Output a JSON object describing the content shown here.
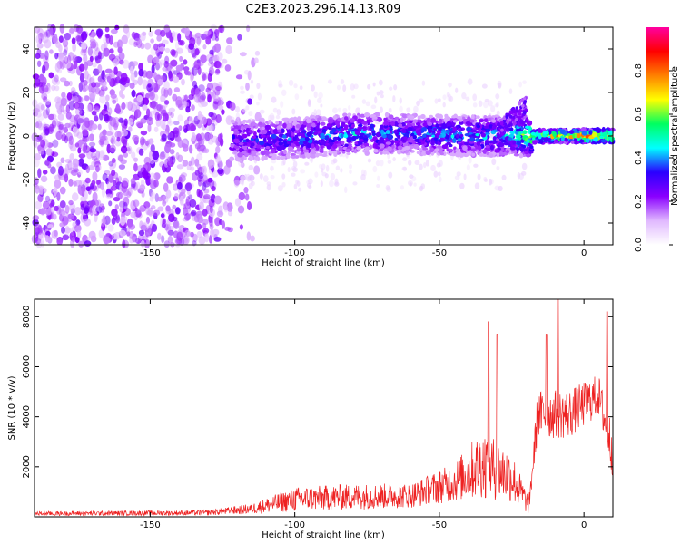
{
  "figure": {
    "title": "C2E3.2023.296.14.13.R09"
  },
  "chart_data": [
    {
      "type": "heatmap",
      "title": "C2E3.2023.296.14.13.R09",
      "xlabel": "Height of straight line (km)",
      "ylabel": "Frequency (Hz)",
      "xlim": [
        -190,
        10
      ],
      "ylim": [
        -50,
        50
      ],
      "xticks": [
        -150,
        -100,
        -50,
        0
      ],
      "yticks": [
        -40,
        -20,
        0,
        20,
        40
      ],
      "colorbar": {
        "label": "Normalized spectral amplitude",
        "range": [
          0,
          1
        ],
        "ticks": [
          0.0,
          0.2,
          0.4,
          0.6,
          0.8
        ],
        "colormap": [
          "#ffffff",
          "#e0b8ff",
          "#8a00ff",
          "#2a00ff",
          "#00ffff",
          "#00ff60",
          "#ffff00",
          "#ff8000",
          "#ff0000",
          "#ff00a0"
        ]
      },
      "description_of_pattern": {
        "noise_region_x": [
          -190,
          -120
        ],
        "signal_track": [
          {
            "x": -120,
            "freq": -2,
            "amp": 0.35
          },
          {
            "x": -100,
            "freq": -1,
            "amp": 0.4
          },
          {
            "x": -80,
            "freq": 1,
            "amp": 0.45
          },
          {
            "x": -60,
            "freq": 1,
            "amp": 0.4
          },
          {
            "x": -40,
            "freq": 0,
            "amp": 0.45
          },
          {
            "x": -25,
            "freq": 0,
            "amp": 0.5
          },
          {
            "x": -15,
            "freq": 0,
            "amp": 0.75
          },
          {
            "x": -5,
            "freq": 0,
            "amp": 0.8
          },
          {
            "x": 5,
            "freq": 0,
            "amp": 0.95
          }
        ],
        "upward_branch": [
          {
            "x": -30,
            "freq": 2
          },
          {
            "x": -25,
            "freq": 8
          },
          {
            "x": -20,
            "freq": 15
          }
        ]
      }
    },
    {
      "type": "line",
      "xlabel": "Height of straight line (km)",
      "ylabel": "SNR (10 * v/v)",
      "xlim": [
        -190,
        10
      ],
      "ylim": [
        0,
        8700
      ],
      "xticks": [
        -150,
        -100,
        -50,
        0
      ],
      "yticks": [
        2000,
        4000,
        6000,
        8000
      ],
      "color": "#ee2222",
      "series_shape": [
        {
          "x": -190,
          "mean": 120,
          "amp": 120
        },
        {
          "x": -130,
          "mean": 150,
          "amp": 150
        },
        {
          "x": -115,
          "mean": 300,
          "amp": 300
        },
        {
          "x": -100,
          "mean": 650,
          "amp": 700
        },
        {
          "x": -80,
          "mean": 750,
          "amp": 750
        },
        {
          "x": -60,
          "mean": 800,
          "amp": 700
        },
        {
          "x": -45,
          "mean": 1300,
          "amp": 1100
        },
        {
          "x": -35,
          "mean": 2000,
          "amp": 2000
        },
        {
          "x": -25,
          "mean": 1500,
          "amp": 1500
        },
        {
          "x": -19,
          "mean": 400,
          "amp": 500
        },
        {
          "x": -16,
          "mean": 4000,
          "amp": 1400
        },
        {
          "x": -5,
          "mean": 4000,
          "amp": 1400
        },
        {
          "x": 5,
          "mean": 4800,
          "amp": 1200
        },
        {
          "x": 10,
          "mean": 2500,
          "amp": 1500
        }
      ],
      "spikes": [
        {
          "x": -33,
          "y": 7800
        },
        {
          "x": -30,
          "y": 7300
        },
        {
          "x": -13,
          "y": 7300
        },
        {
          "x": -9,
          "y": 8700
        },
        {
          "x": 8,
          "y": 8200
        }
      ]
    }
  ]
}
